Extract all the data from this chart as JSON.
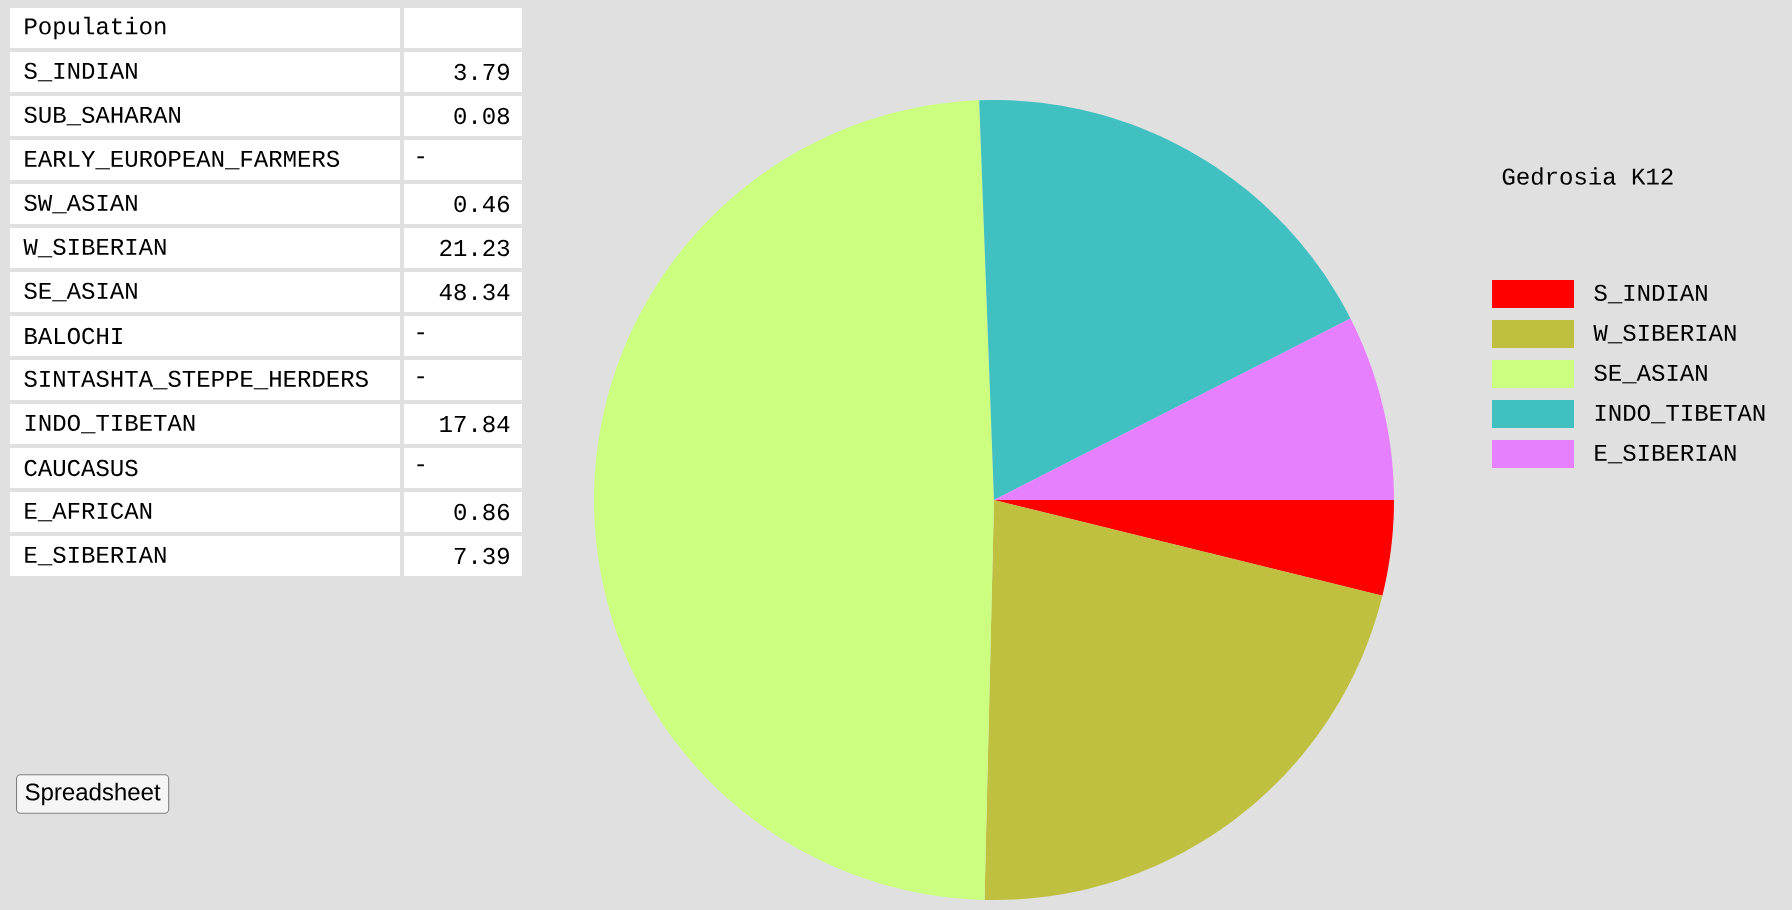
{
  "chart_data": [
    {
      "type": "pie",
      "title": "Gedrosia K12",
      "legend": "right",
      "categories": [
        "S_INDIAN",
        "W_SIBERIAN",
        "SE_ASIAN",
        "INDO_TIBETAN",
        "E_SIBERIAN"
      ],
      "values": [
        3.79,
        21.23,
        48.34,
        17.84,
        7.39
      ],
      "colors": [
        "#ff0000",
        "#c0c040",
        "#ccff80",
        "#40c0c0",
        "#e680ff"
      ]
    },
    {
      "type": "other",
      "title": "Population",
      "categories": [
        "S_INDIAN",
        "SUB_SAHARAN",
        "EARLY_EUROPEAN_FARMERS",
        "SW_ASIAN",
        "W_SIBERIAN",
        "SE_ASIAN",
        "BALOCHI",
        "SINTASHTA_STEPPE_HERDERS",
        "INDO_TIBETAN",
        "CAUCASUS",
        "E_AFRICAN",
        "E_SIBERIAN"
      ],
      "values": [
        3.79,
        0.08,
        null,
        0.46,
        21.23,
        48.34,
        null,
        null,
        17.84,
        null,
        0.86,
        7.39
      ],
      "value_labels": [
        "3.79",
        "0.08",
        "-",
        "0.46",
        "21.23",
        "48.34",
        "-",
        "-",
        "17.84",
        "-",
        "0.86",
        "7.39"
      ],
      "annotations": [
        "Spreadsheet"
      ]
    }
  ]
}
